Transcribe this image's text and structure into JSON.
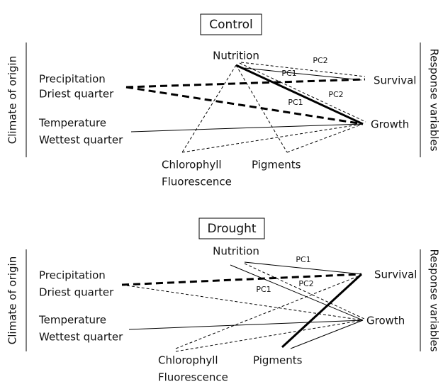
{
  "panels": [
    {
      "title": "Control",
      "nodes": {
        "nutrition": "Nutrition",
        "survival": "Survival",
        "growth": "Growth",
        "precipitation": [
          "Precipitation",
          "Driest quarter"
        ],
        "temperature": [
          "Temperature",
          "Wettest quarter"
        ],
        "chlorophyll": [
          "Chlorophyll",
          "Fluorescence"
        ],
        "pigments": "Pigments"
      },
      "edge_labels": [
        "PC2",
        "PC1",
        "PC2",
        "PC1"
      ],
      "left_label": "Climate of origin",
      "right_label": "Response variables"
    },
    {
      "title": "Drought",
      "nodes": {
        "nutrition": "Nutrition",
        "survival": "Survival",
        "growth": "Growth",
        "precipitation": [
          "Precipitation",
          "Driest quarter"
        ],
        "temperature": [
          "Temperature",
          "Wettest quarter"
        ],
        "chlorophyll": [
          "Chlorophyll",
          "Fluorescence"
        ],
        "pigments": "Pigments"
      },
      "edge_labels": [
        "PC1",
        "PC1",
        "PC2"
      ],
      "left_label": "Climate of origin",
      "right_label": "Response variables"
    }
  ]
}
